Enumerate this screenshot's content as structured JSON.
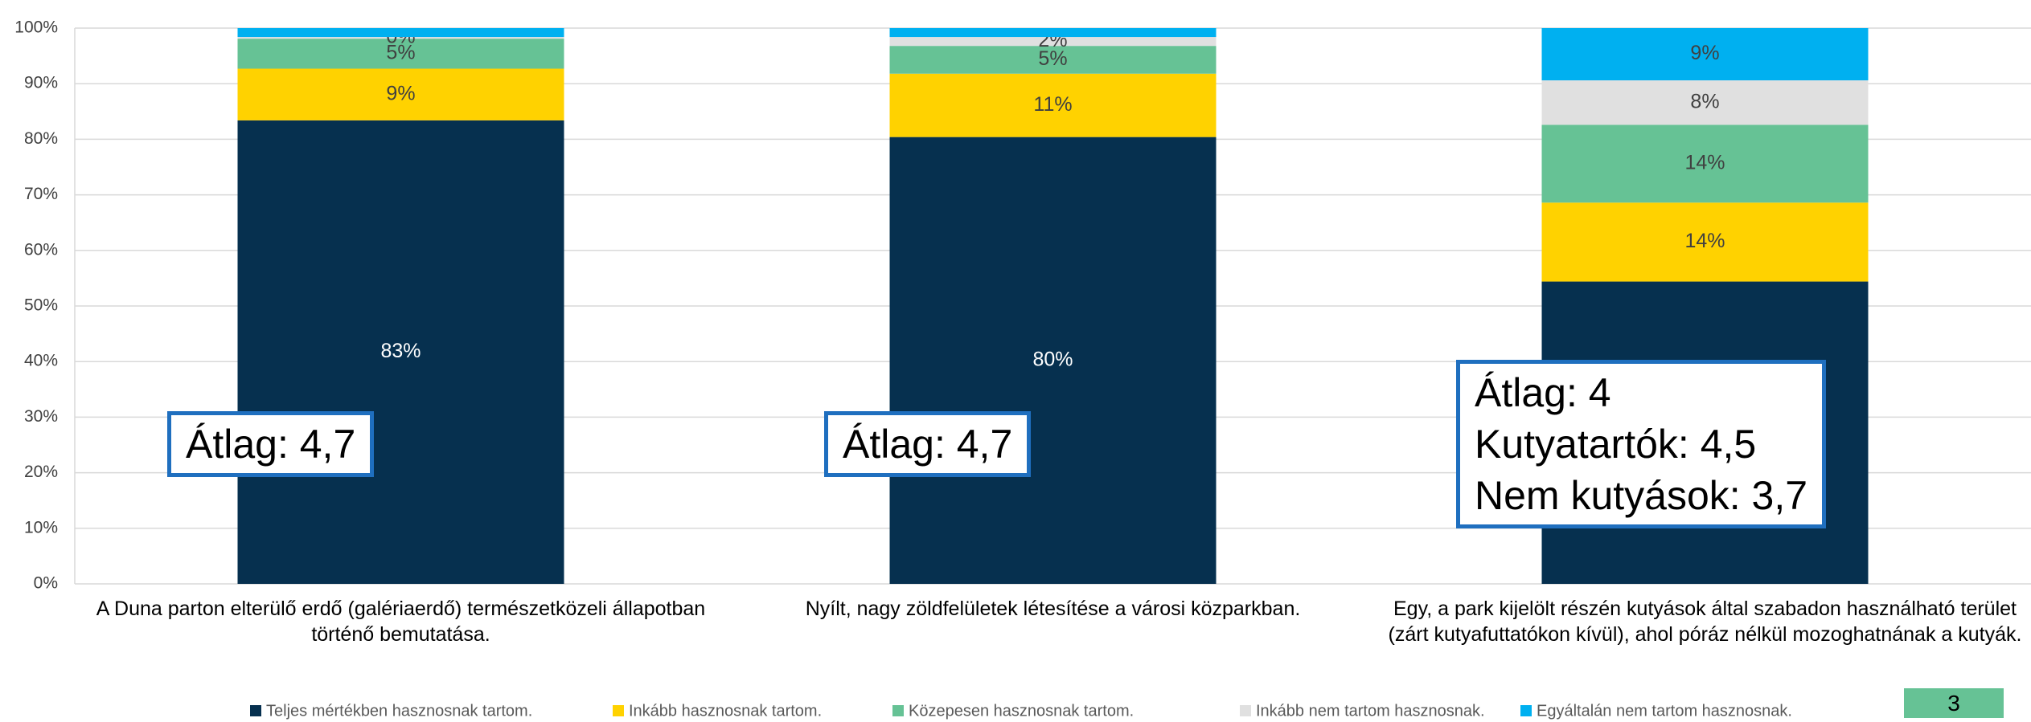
{
  "chart_data": {
    "type": "stacked_bar",
    "categories": [
      "A Duna parton elterülő erdő (galériaerdő) természetközeli állapotban történő bemutatása.",
      "Nyílt, nagy zöldfelületek létesítése a városi közparkban.",
      "Egy, a park kijelölt részén kutyások által szabadon használható terület (zárt kutyafuttatókon kívül), ahol póráz nélkül mozoghatnának a kutyák."
    ],
    "series": [
      {
        "name": "Teljes mértékben hasznosnak tartom.",
        "color": "#06304f",
        "label_color": "#ffffff",
        "values": [
          83.4,
          80.4,
          54.4
        ],
        "value_labels": [
          "83%",
          "80%",
          "54%"
        ]
      },
      {
        "name": "Inkább hasznosnak tartom.",
        "color": "#ffd200",
        "label_color": "#404040",
        "values": [
          9.3,
          11.4,
          14.2
        ],
        "value_labels": [
          "9%",
          "11%",
          "14%"
        ]
      },
      {
        "name": "Közepesen hasznosnak tartom.",
        "color": "#66c295",
        "label_color": "#404040",
        "values": [
          5.4,
          5.0,
          14.0
        ],
        "value_labels": [
          "5%",
          "5%",
          "14%"
        ]
      },
      {
        "name": "Inkább nem tartom hasznosnak.",
        "color": "#e0e0e0",
        "label_color": "#404040",
        "values": [
          0.3,
          1.6,
          8.0
        ],
        "value_labels": [
          "0%",
          "2%",
          "8%"
        ]
      },
      {
        "name": "Egyáltalán nem tartom hasznosnak.",
        "color": "#00b0f0",
        "label_color": "#404040",
        "values": [
          1.6,
          1.6,
          9.4
        ],
        "value_labels": [
          null,
          null,
          "9%"
        ]
      }
    ],
    "ylim": [
      0,
      100
    ],
    "yticks": [
      {
        "value": 0,
        "label": "0%"
      },
      {
        "value": 10,
        "label": "10%"
      },
      {
        "value": 20,
        "label": "20%"
      },
      {
        "value": 30,
        "label": "30%"
      },
      {
        "value": 40,
        "label": "40%"
      },
      {
        "value": 50,
        "label": "50%"
      },
      {
        "value": 60,
        "label": "60%"
      },
      {
        "value": 70,
        "label": "70%"
      },
      {
        "value": 80,
        "label": "80%"
      },
      {
        "value": 90,
        "label": "90%"
      },
      {
        "value": 100,
        "label": "100%"
      }
    ],
    "grid": true,
    "legend": "bottom",
    "annotations": [
      [
        "Átlag: 4,7"
      ],
      [
        "Átlag: 4,7"
      ],
      [
        "Átlag: 4",
        "Kutyatartók: 4,5",
        "Nem kutyások: 3,7"
      ]
    ]
  },
  "page_number": "3"
}
